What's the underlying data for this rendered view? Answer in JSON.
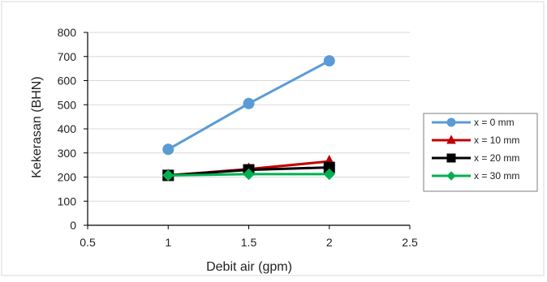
{
  "chart_data": {
    "type": "line",
    "title": "",
    "xlabel": "Debit air (gpm)",
    "ylabel": "Kekerasan (BHN)",
    "xlim": [
      0.5,
      2.5
    ],
    "ylim": [
      0,
      800
    ],
    "x_ticks": [
      "0.5",
      "1",
      "1.5",
      "2",
      "2.5"
    ],
    "y_ticks": [
      "0",
      "100",
      "200",
      "300",
      "400",
      "500",
      "600",
      "700",
      "800"
    ],
    "grid": "horizontal",
    "legend_position": "right",
    "series": [
      {
        "name": "x = 0 mm",
        "color": "#5b9bd5",
        "marker": "circle",
        "x": [
          1,
          1.5,
          2
        ],
        "y": [
          315,
          505,
          682
        ]
      },
      {
        "name": "x = 10 mm",
        "color": "#c00000",
        "marker": "triangle",
        "x": [
          1,
          1.5,
          2
        ],
        "y": [
          207,
          233,
          265
        ]
      },
      {
        "name": "x = 20 mm",
        "color": "#000000",
        "marker": "square",
        "x": [
          1,
          1.5,
          2
        ],
        "y": [
          207,
          230,
          240
        ]
      },
      {
        "name": "x = 30 mm",
        "color": "#00b050",
        "marker": "diamond",
        "x": [
          1,
          1.5,
          2
        ],
        "y": [
          207,
          212,
          212
        ]
      }
    ]
  }
}
